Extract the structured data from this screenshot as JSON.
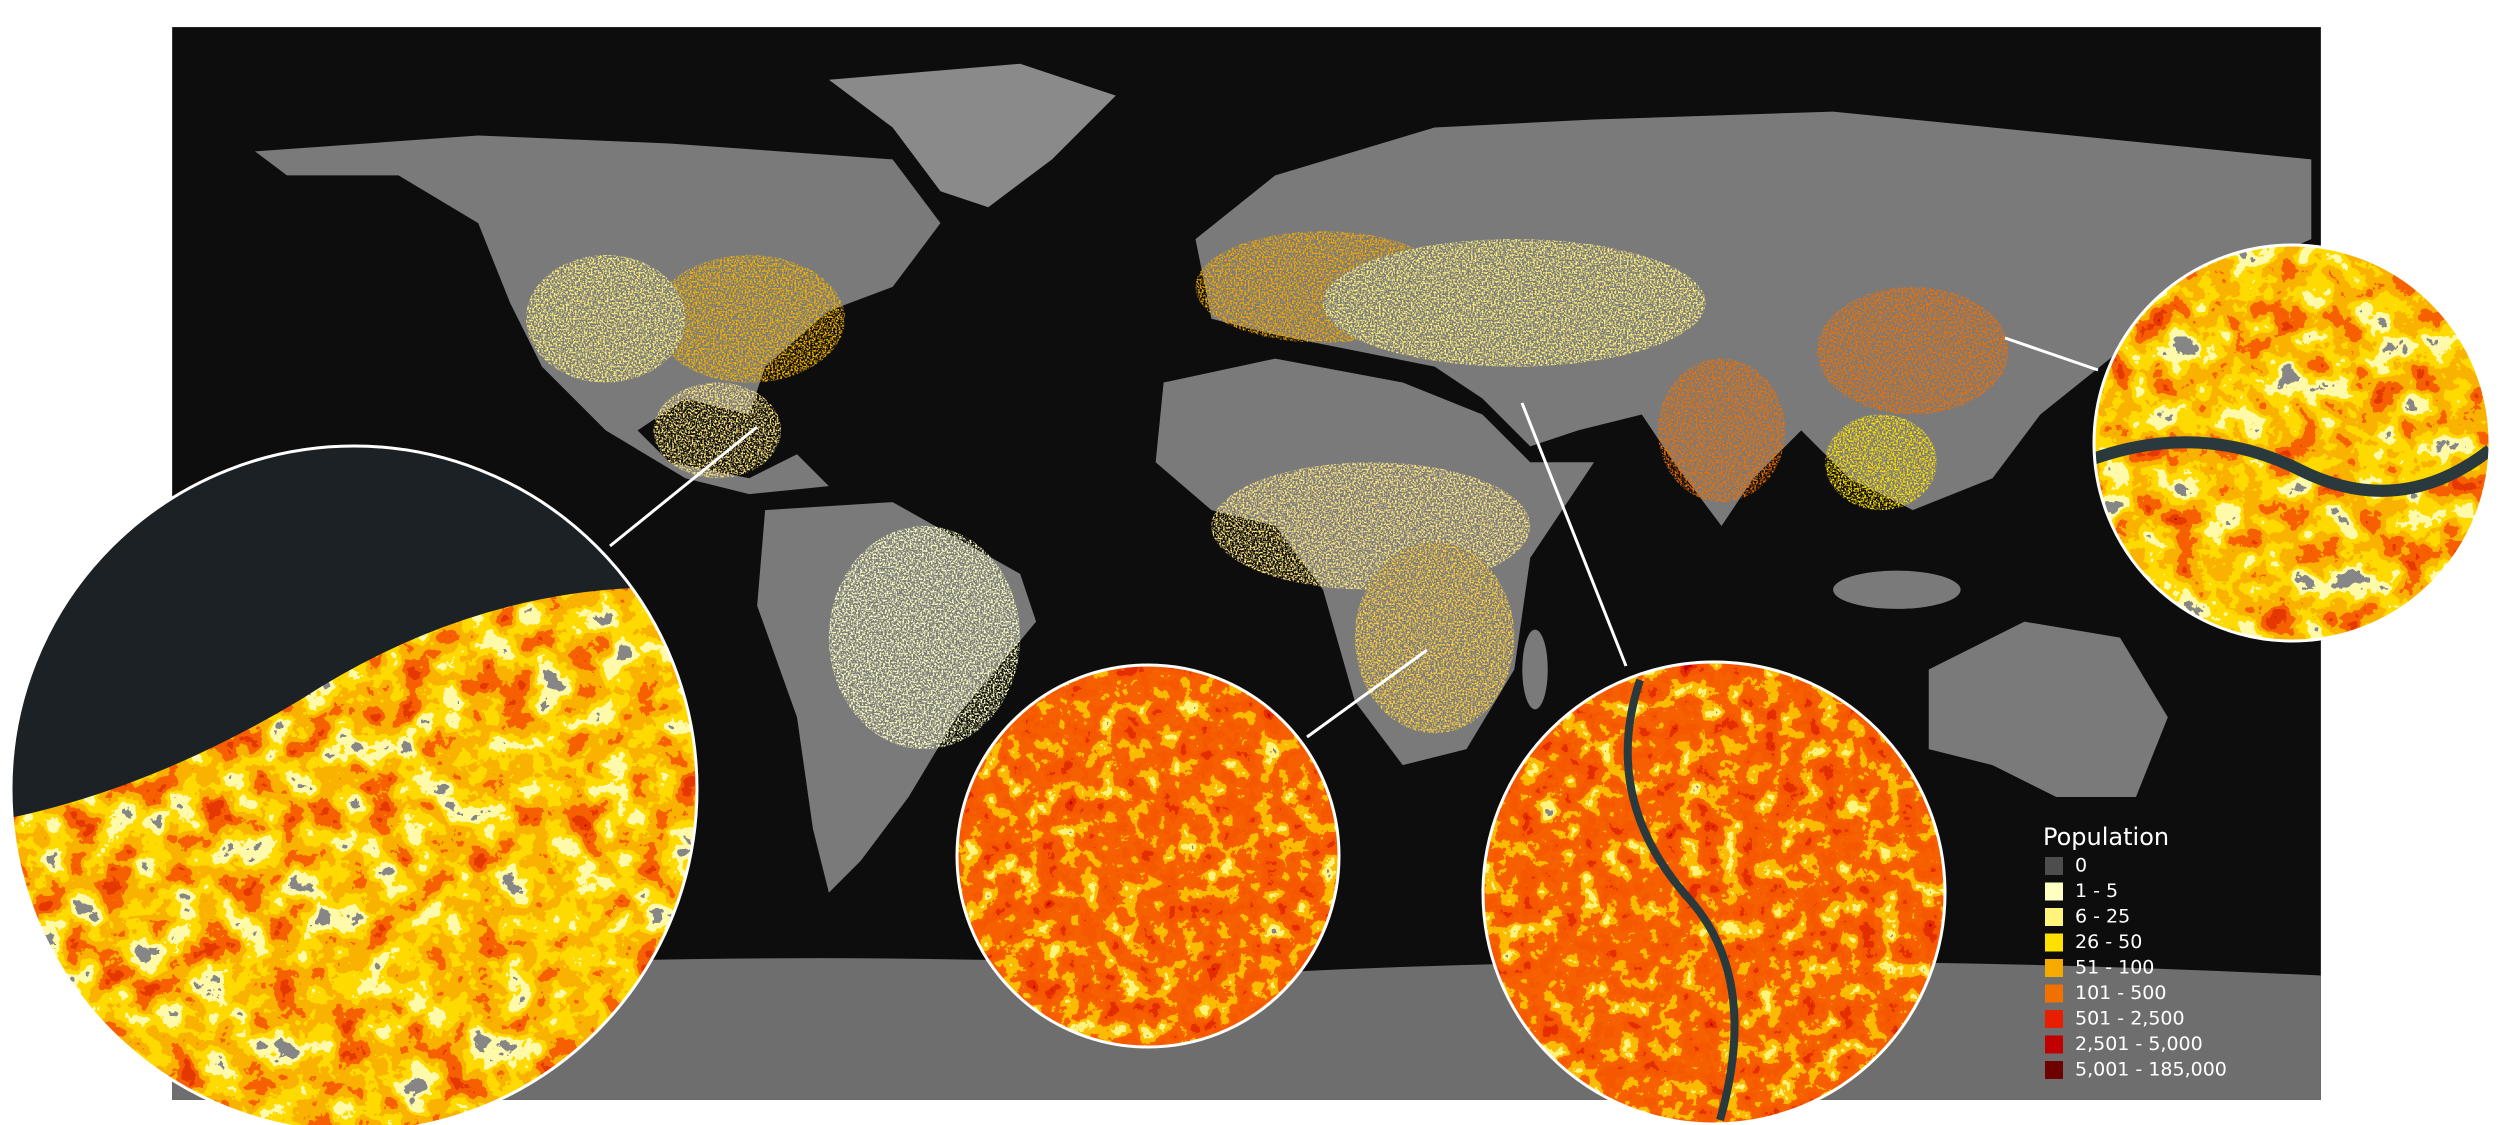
{
  "legend": {
    "title": "Population",
    "items": [
      {
        "label": "0",
        "color": "#4d4d4d"
      },
      {
        "label": "1 - 5",
        "color": "#ffffc2"
      },
      {
        "label": "6 - 25",
        "color": "#fff57a"
      },
      {
        "label": "26 - 50",
        "color": "#ffe100"
      },
      {
        "label": "51 - 100",
        "color": "#f5aa00"
      },
      {
        "label": "101 - 500",
        "color": "#f07000"
      },
      {
        "label": "501 - 2,500",
        "color": "#e81e00"
      },
      {
        "label": "2,501 - 5,000",
        "color": "#c00000"
      },
      {
        "label": "5,001 - 185,000",
        "color": "#6e0000"
      }
    ]
  }
}
